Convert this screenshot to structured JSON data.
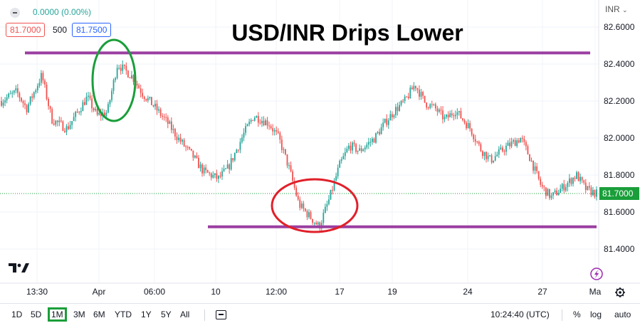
{
  "header": {
    "change": "0.0000 (0.00%)",
    "bid": "81.7000",
    "spread": "500",
    "ask": "81.7500",
    "currency": "INR"
  },
  "colors": {
    "up": "#26a69a",
    "down": "#ef5350",
    "support_resistance": "#9b3fa1",
    "highlight_green": "#1a9e3a",
    "highlight_red": "#e0202a",
    "price_label": "#1a9e3a"
  },
  "timeframes": [
    "1D",
    "5D",
    "1M",
    "3M",
    "6M",
    "YTD",
    "1Y",
    "5Y",
    "All"
  ],
  "active_timeframe": "1M",
  "status": {
    "time": "10:24:40 (UTC)",
    "percent": "%",
    "log": "log",
    "auto": "auto"
  },
  "chart_data": {
    "type": "candlestick",
    "title": "USD/INR Drips Lower",
    "x_ticks": [
      "13:30",
      "Apr",
      "06:00",
      "10",
      "12:00",
      "17",
      "19",
      "24",
      "27",
      "Ma"
    ],
    "y_ticks": [
      "82.6000",
      "82.4000",
      "82.2000",
      "82.0000",
      "81.8000",
      "81.6000",
      "81.4000"
    ],
    "ylim": [
      81.3,
      82.68
    ],
    "last_price": 81.7,
    "last_price_label": "81.7000",
    "levels": [
      {
        "name": "resistance",
        "value": 82.46
      },
      {
        "name": "support",
        "value": 81.52
      }
    ],
    "path": [
      [
        0,
        82.2
      ],
      [
        3,
        82.25
      ],
      [
        5,
        82.16
      ],
      [
        8,
        82.34
      ],
      [
        10,
        82.1
      ],
      [
        13,
        82.05
      ],
      [
        17,
        82.22
      ],
      [
        19,
        82.12
      ],
      [
        21,
        82.14
      ],
      [
        23,
        82.4
      ],
      [
        26,
        82.33
      ],
      [
        28,
        82.24
      ],
      [
        30,
        82.18
      ],
      [
        33,
        82.08
      ],
      [
        35,
        82.0
      ],
      [
        38,
        81.9
      ],
      [
        40,
        81.82
      ],
      [
        43,
        81.78
      ],
      [
        45,
        81.84
      ],
      [
        48,
        82.02
      ],
      [
        50,
        82.12
      ],
      [
        53,
        82.08
      ],
      [
        55,
        82.0
      ],
      [
        57,
        81.84
      ],
      [
        59,
        81.64
      ],
      [
        61,
        81.58
      ],
      [
        63,
        81.52
      ],
      [
        65,
        81.67
      ],
      [
        67,
        81.85
      ],
      [
        69,
        81.96
      ],
      [
        71,
        81.93
      ],
      [
        74,
        82.0
      ],
      [
        76,
        82.08
      ],
      [
        78,
        82.15
      ],
      [
        80,
        82.2
      ],
      [
        82,
        82.29
      ],
      [
        84,
        82.19
      ],
      [
        86,
        82.16
      ],
      [
        88,
        82.1
      ],
      [
        90,
        82.15
      ],
      [
        93,
        82.05
      ],
      [
        95,
        81.94
      ],
      [
        97,
        81.88
      ],
      [
        100,
        81.95
      ],
      [
        103,
        82.0
      ],
      [
        105,
        81.88
      ],
      [
        107,
        81.74
      ],
      [
        109,
        81.68
      ],
      [
        112,
        81.75
      ],
      [
        114,
        81.8
      ],
      [
        116,
        81.72
      ],
      [
        118,
        81.7
      ]
    ]
  }
}
